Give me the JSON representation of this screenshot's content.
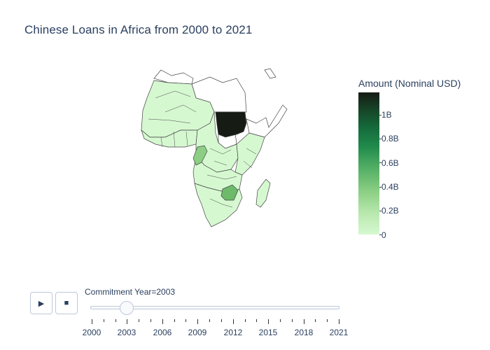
{
  "title": "Chinese Loans in Africa from 2000 to 2021",
  "colorbar": {
    "title": "Amount (Nominal USD)",
    "tick_labels": [
      "0",
      "0.2B",
      "0.4B",
      "0.6B",
      "0.8B",
      "1B"
    ],
    "tick_values": [
      0,
      0.2,
      0.4,
      0.6,
      0.8,
      1.0
    ],
    "max_value": 1.2,
    "colors": [
      "#d6f8d1",
      "#b8e8ae",
      "#8ccf84",
      "#4fac63",
      "#1f8a4b",
      "#15683a",
      "#163d24",
      "#161b14"
    ]
  },
  "map": {
    "highlighted_countries": [
      {
        "name": "Sudan",
        "value": 1.2,
        "color": "#161b14"
      },
      {
        "name": "Zimbabwe",
        "value": 0.35,
        "color": "#6dba6a"
      },
      {
        "name": "Congo",
        "value": 0.3,
        "color": "#8ccf84"
      }
    ],
    "base_color": "#d6f8d1"
  },
  "slider": {
    "current_label": "Commitment Year=2003",
    "min_year": 2000,
    "max_year": 2021,
    "current_year": 2003,
    "tick_labels": [
      "2000",
      "2003",
      "2006",
      "2009",
      "2012",
      "2015",
      "2018",
      "2021"
    ]
  },
  "controls": {
    "play_icon": "play-icon",
    "stop_icon": "stop-icon",
    "play_glyph": "▶",
    "stop_glyph": "■"
  }
}
